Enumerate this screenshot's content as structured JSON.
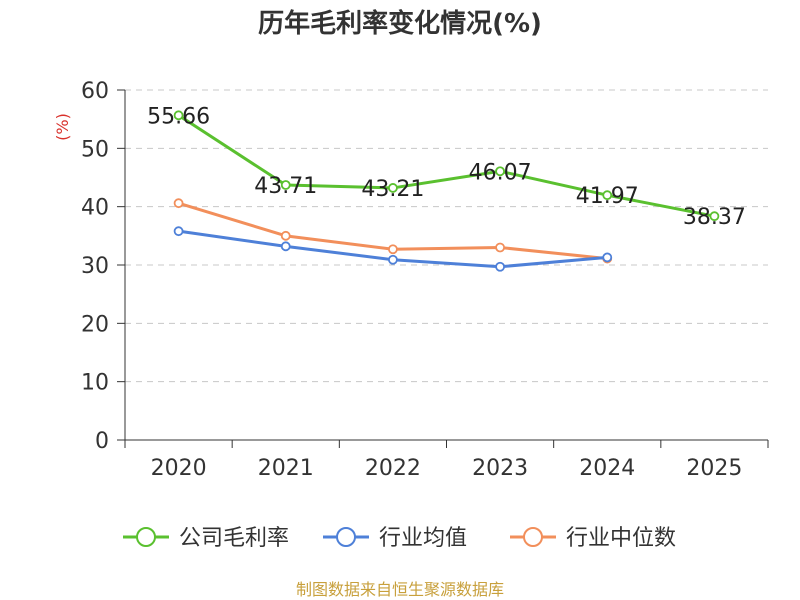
{
  "chart_data": {
    "type": "line",
    "title": "历年毛利率变化情况(%)",
    "ylabel": "(%)",
    "xlabel": "",
    "categories": [
      "2020",
      "2021",
      "2022",
      "2023",
      "2024",
      "2025"
    ],
    "ylim": [
      0,
      60
    ],
    "yticks": [
      0,
      10,
      20,
      30,
      40,
      50,
      60
    ],
    "grid": true,
    "legend_position": "bottom",
    "series": [
      {
        "name": "公司毛利率",
        "color": "#5ac02f",
        "values": [
          55.66,
          43.71,
          43.21,
          46.07,
          41.97,
          38.37
        ],
        "labels": [
          "55.66",
          "43.71",
          "43.21",
          "46.07",
          "41.97",
          "38.37"
        ]
      },
      {
        "name": "行业均值",
        "color": "#4e80d8",
        "values": [
          35.8,
          33.2,
          30.9,
          29.7,
          31.3,
          null
        ]
      },
      {
        "name": "行业中位数",
        "color": "#f28f5b",
        "values": [
          40.6,
          35.0,
          32.7,
          33.0,
          31.1,
          null
        ]
      }
    ],
    "source": "制图数据来自恒生聚源数据库"
  }
}
